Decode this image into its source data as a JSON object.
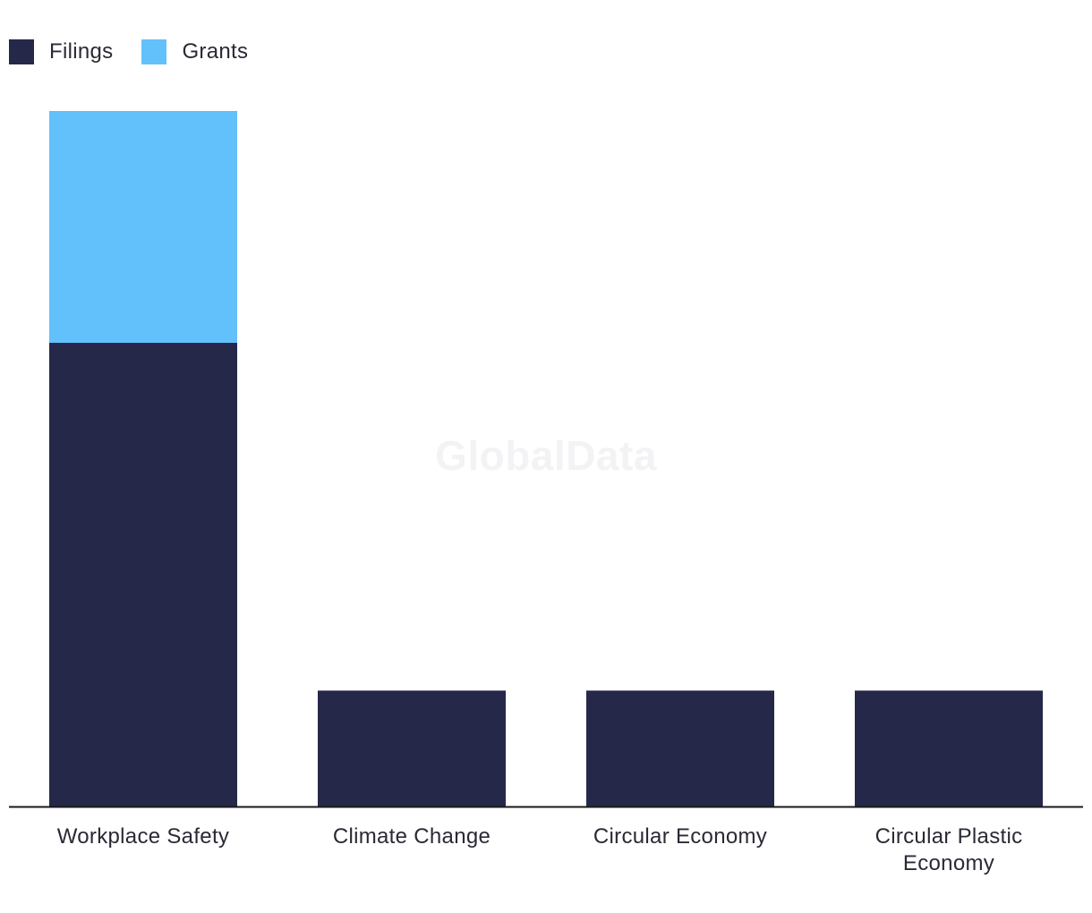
{
  "watermark": "GlobalData",
  "colors": {
    "filings": "#262849",
    "grants": "#62c1fa",
    "axis": "#1a1a1a"
  },
  "chart_data": {
    "type": "bar",
    "stacked": true,
    "categories": [
      "Workplace Safety",
      "Climate Change",
      "Circular Economy",
      "Circular Plastic Economy"
    ],
    "category_lines": [
      [
        "Workplace Safety"
      ],
      [
        "Climate Change"
      ],
      [
        "Circular Economy"
      ],
      [
        "Circular Plastic",
        "Economy"
      ]
    ],
    "series": [
      {
        "name": "Filings",
        "color": "#262849",
        "values": [
          4,
          1,
          1,
          1
        ]
      },
      {
        "name": "Grants",
        "color": "#62c1fa",
        "values": [
          2,
          0,
          0,
          0
        ]
      }
    ],
    "ylim": [
      0,
      6
    ],
    "legend_position": "top-left",
    "grid": false
  }
}
